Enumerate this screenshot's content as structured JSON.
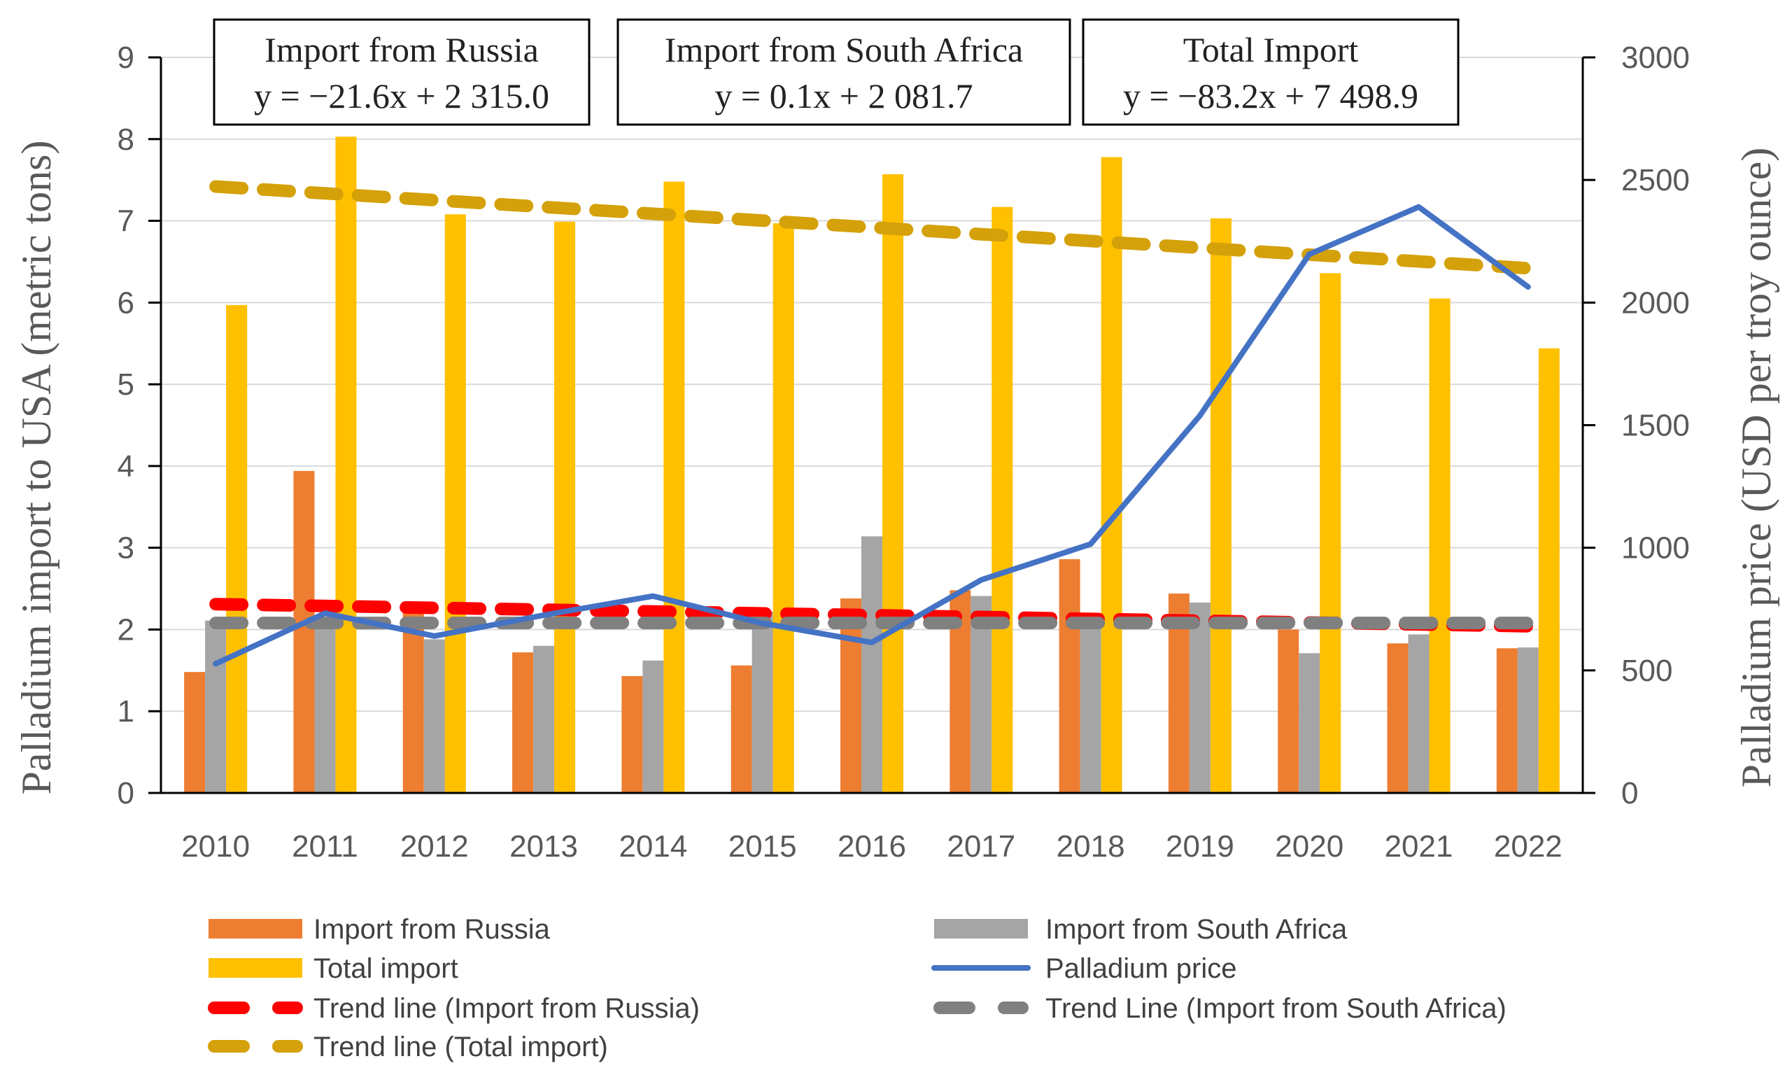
{
  "chart_data": {
    "type": "bar",
    "categories": [
      "2010",
      "2011",
      "2012",
      "2013",
      "2014",
      "2015",
      "2016",
      "2017",
      "2018",
      "2019",
      "2020",
      "2021",
      "2022"
    ],
    "series": [
      {
        "name": "Import from Russia",
        "kind": "bar",
        "axis": "left",
        "color": "#ED7D31",
        "values": [
          1.48,
          3.94,
          2.24,
          1.72,
          1.43,
          1.56,
          2.38,
          2.48,
          2.86,
          2.44,
          2.0,
          1.83,
          1.77
        ]
      },
      {
        "name": "Import from South Africa",
        "kind": "bar",
        "axis": "left",
        "color": "#A5A5A5",
        "values": [
          2.11,
          2.15,
          1.88,
          1.8,
          1.62,
          2.22,
          3.14,
          2.41,
          2.13,
          2.33,
          1.71,
          1.94,
          1.78
        ]
      },
      {
        "name": "Total import",
        "kind": "bar",
        "axis": "left",
        "color": "#FFC000",
        "values": [
          5.97,
          8.03,
          7.08,
          6.99,
          7.48,
          6.97,
          7.57,
          7.17,
          7.78,
          7.03,
          6.36,
          6.05,
          5.44
        ]
      },
      {
        "name": "Palladium price",
        "kind": "line",
        "axis": "right",
        "color": "#4472C4",
        "values": [
          527,
          733,
          640,
          725,
          803,
          692,
          614,
          869,
          1015,
          1539,
          2197,
          2390,
          2064
        ]
      }
    ],
    "trend_lines": [
      {
        "name": "Trend line (Import from Russia)",
        "color": "#FF0000",
        "values": [
          2.31,
          2.29,
          2.26,
          2.24,
          2.22,
          2.2,
          2.18,
          2.15,
          2.13,
          2.11,
          2.09,
          2.07,
          2.04
        ]
      },
      {
        "name": "Trend Line (Import from South Africa)",
        "color": "#808080",
        "values": [
          2.08,
          2.08,
          2.08,
          2.08,
          2.08,
          2.08,
          2.08,
          2.08,
          2.08,
          2.08,
          2.08,
          2.08,
          2.08
        ]
      },
      {
        "name": "Trend line (Total import)",
        "color": "#D4A10A",
        "values": [
          7.42,
          7.33,
          7.25,
          7.17,
          7.08,
          7.0,
          6.92,
          6.83,
          6.75,
          6.67,
          6.58,
          6.5,
          6.42
        ]
      }
    ],
    "ylim_left": [
      0,
      9
    ],
    "yticks_left": [
      "0",
      "1",
      "2",
      "3",
      "4",
      "5",
      "6",
      "7",
      "8",
      "9"
    ],
    "ylim_right": [
      0,
      3000
    ],
    "yticks_right": [
      "0",
      "500",
      "1000",
      "1500",
      "2000",
      "2500",
      "3000"
    ],
    "ylabel_left": "Palladium import to USA (metric tons)",
    "ylabel_right": "Palladium price (USD per troy ounce)",
    "xlabel": "",
    "grid": true,
    "legend_position": "bottom",
    "equations": [
      {
        "title": "Import from Russia",
        "equation": "y = −21.6x + 2 315.0"
      },
      {
        "title": "Import from South Africa",
        "equation": "y = 0.1x + 2 081.7"
      },
      {
        "title": "Total Import",
        "equation": "y = −83.2x + 7 498.9"
      }
    ],
    "legend": [
      {
        "label": "Import from Russia",
        "kind": "bar",
        "color": "#ED7D31"
      },
      {
        "label": "Import from South Africa",
        "kind": "bar",
        "color": "#A5A5A5"
      },
      {
        "label": "Total import",
        "kind": "bar",
        "color": "#FFC000"
      },
      {
        "label": "Palladium price",
        "kind": "line",
        "color": "#4472C4"
      },
      {
        "label": "Trend line (Import from Russia)",
        "kind": "dash",
        "color": "#FF0000"
      },
      {
        "label": "Trend Line (Import from South Africa)",
        "kind": "dash",
        "color": "#808080"
      },
      {
        "label": "Trend line (Total import)",
        "kind": "dash",
        "color": "#D4A10A"
      }
    ]
  }
}
